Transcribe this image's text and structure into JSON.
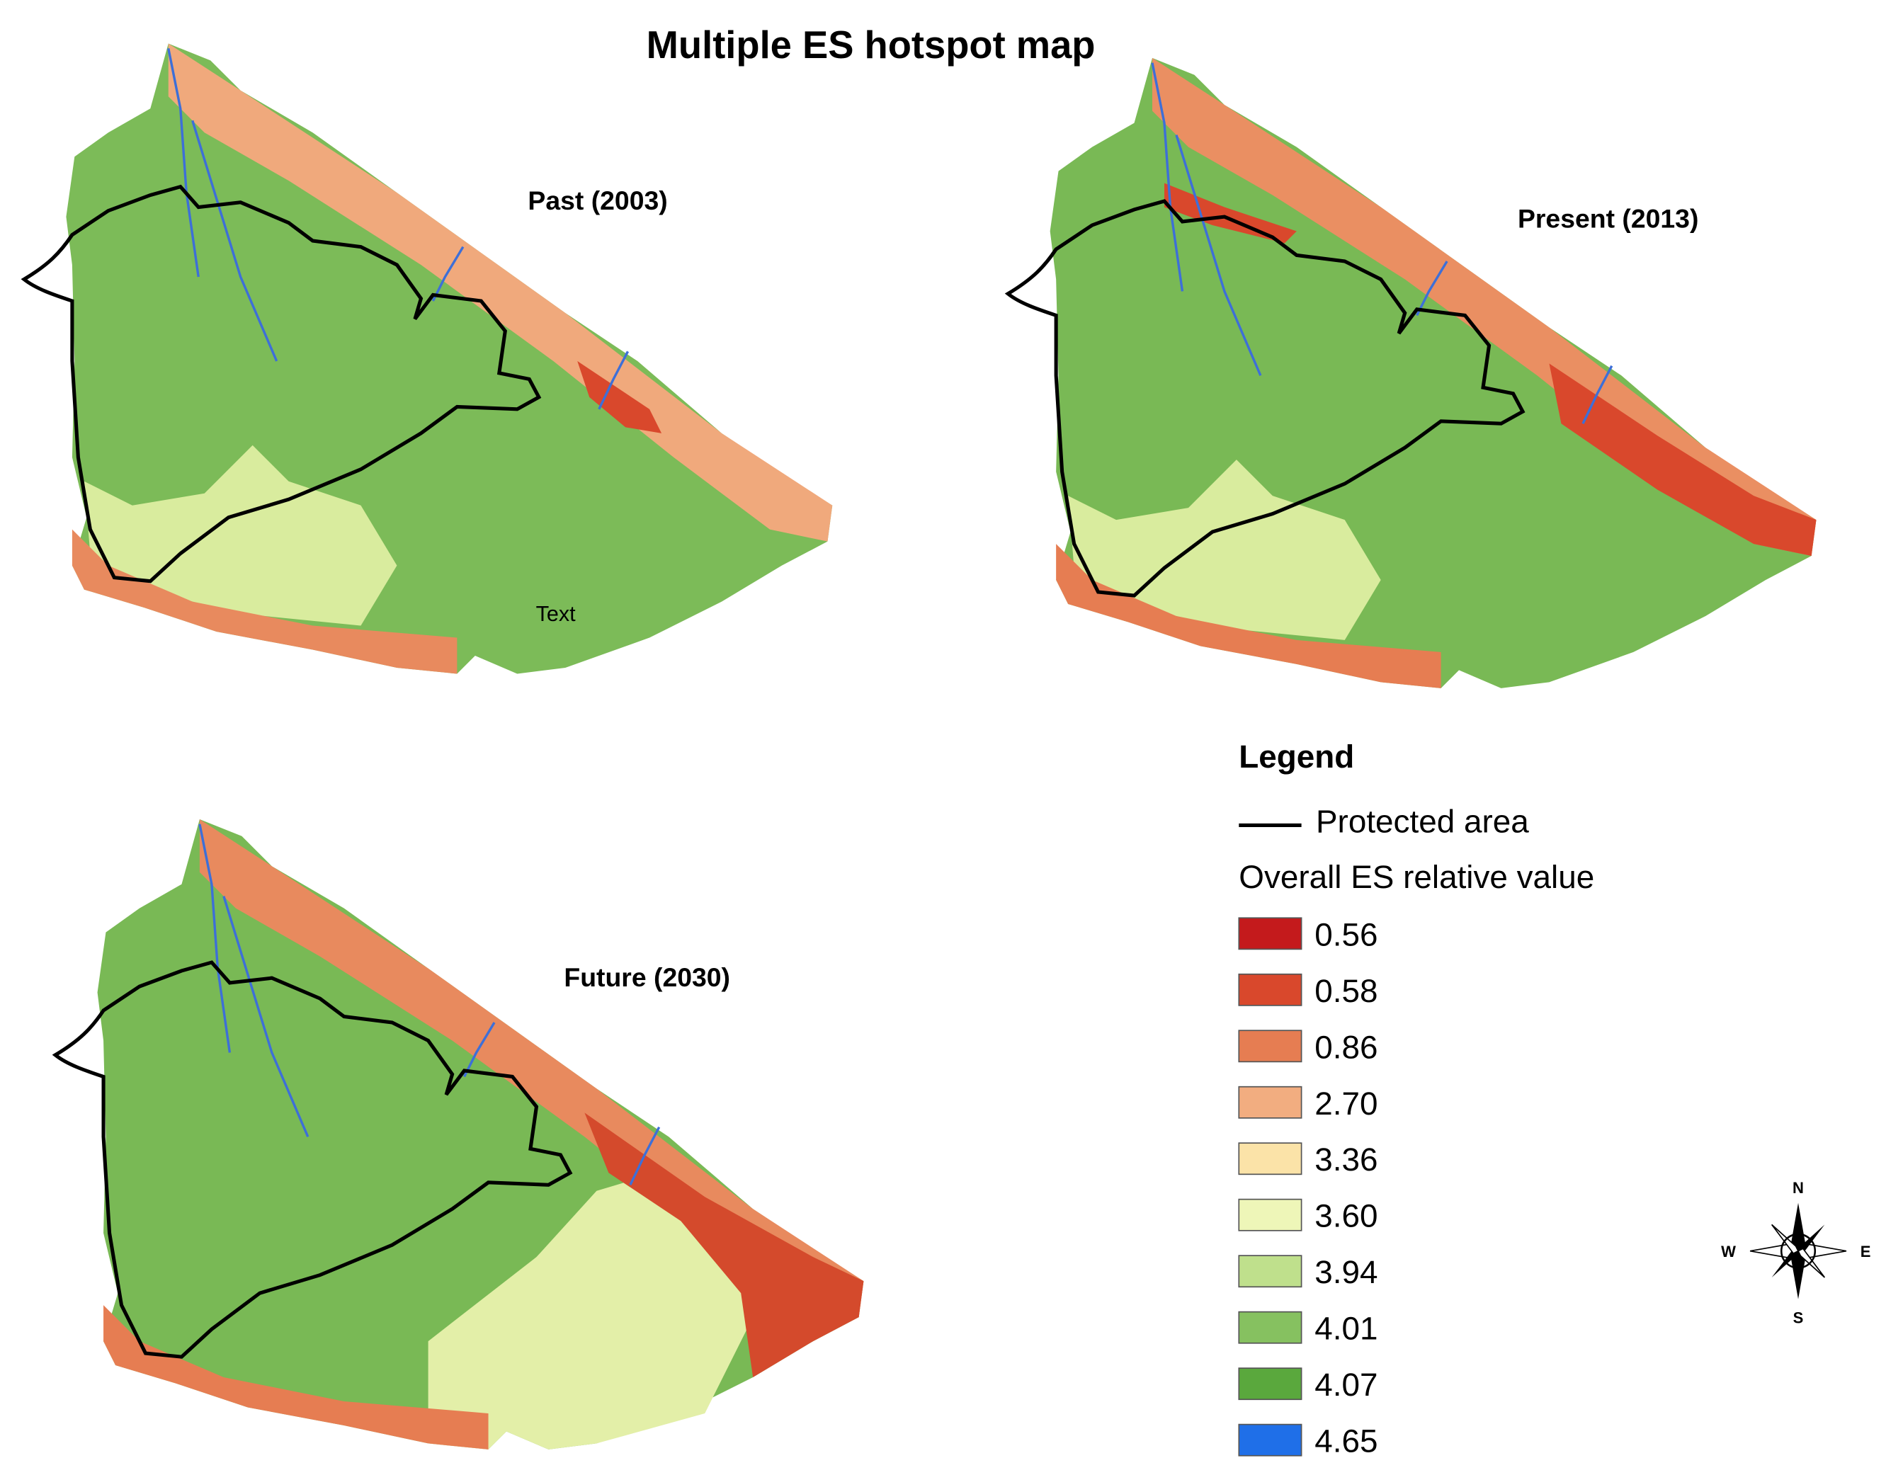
{
  "title": "Multiple ES hotspot map",
  "maps": [
    {
      "label": "Past (2003)",
      "note": "Text"
    },
    {
      "label": "Present (2013)"
    },
    {
      "label": "Future (2030)"
    }
  ],
  "legend": {
    "title": "Legend",
    "protected_area": "Protected area",
    "heading": "Overall ES relative value",
    "items": [
      {
        "label": "0.56",
        "color": "#c41a1c"
      },
      {
        "label": "0.58",
        "color": "#d9482c"
      },
      {
        "label": "0.86",
        "color": "#e67d52"
      },
      {
        "label": "2.70",
        "color": "#f2ad80"
      },
      {
        "label": "3.36",
        "color": "#fbe3a8"
      },
      {
        "label": "3.60",
        "color": "#eef6b8"
      },
      {
        "label": "3.94",
        "color": "#bfe08c"
      },
      {
        "label": "4.01",
        "color": "#86c160"
      },
      {
        "label": "4.07",
        "color": "#5aa83d"
      },
      {
        "label": "4.65",
        "color": "#1f6fe8"
      }
    ]
  },
  "compass": {
    "n": "N",
    "s": "S",
    "e": "E",
    "w": "W"
  }
}
